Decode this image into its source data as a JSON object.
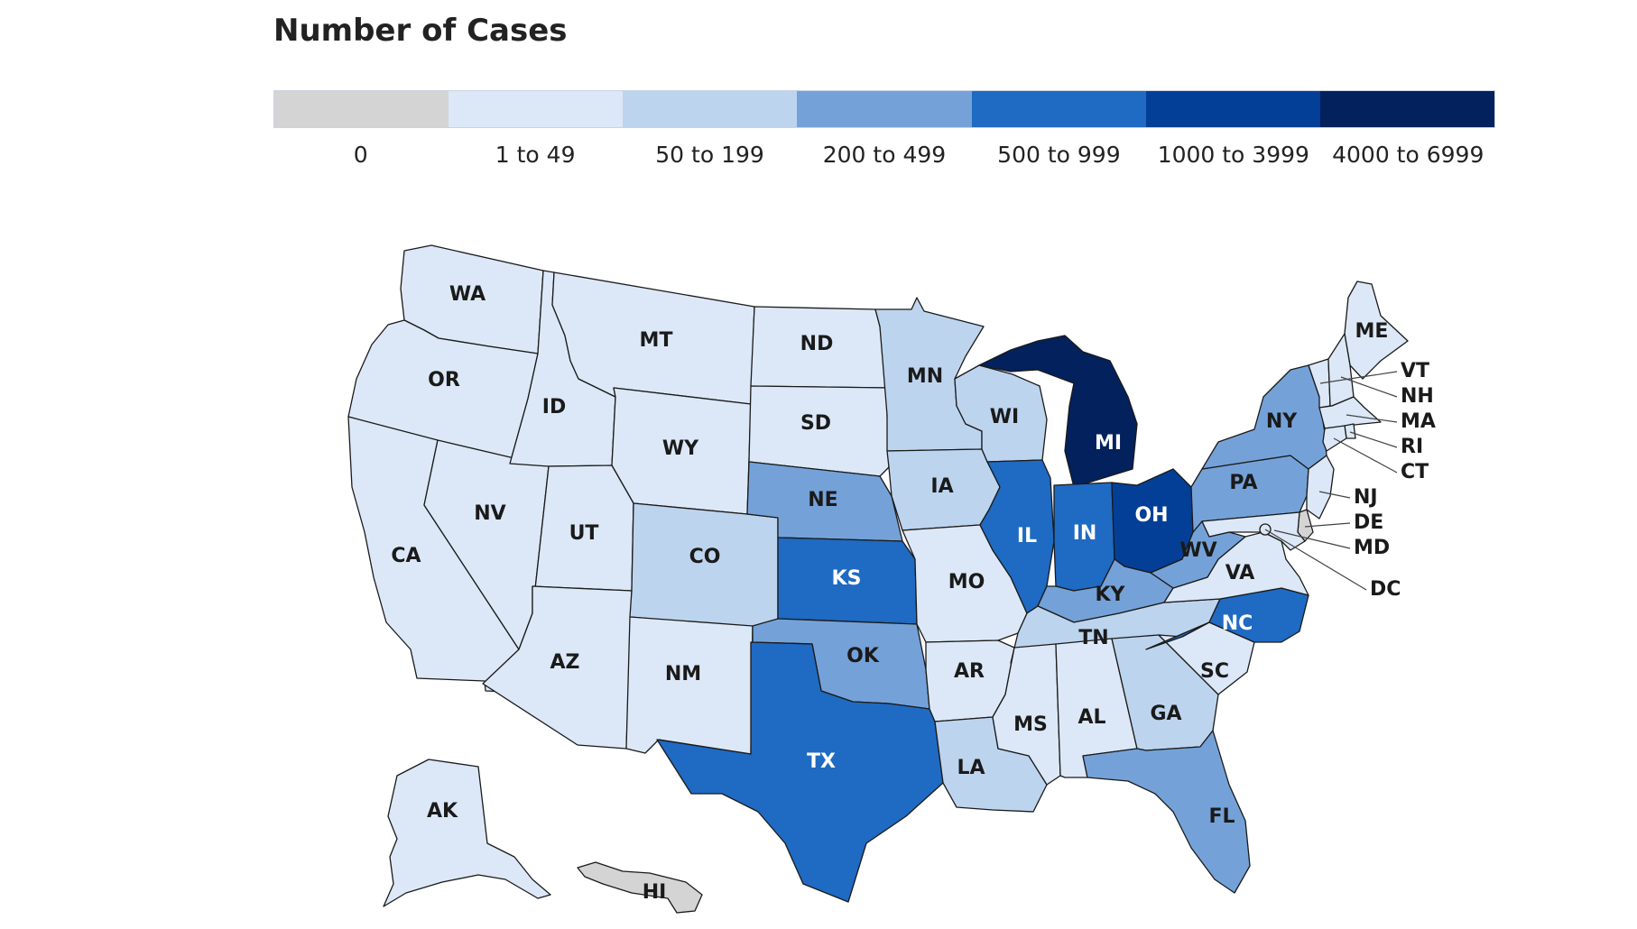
{
  "title": "Number of Cases",
  "legend": [
    {
      "label": "0",
      "color": "#d4d4d4"
    },
    {
      "label": "1 to 49",
      "color": "#dce8f7"
    },
    {
      "label": "50 to 199",
      "color": "#bdd4ee"
    },
    {
      "label": "200 to 499",
      "color": "#74a2d8"
    },
    {
      "label": "500 to 999",
      "color": "#1f6ac2"
    },
    {
      "label": "1000 to 3999",
      "color": "#033f96"
    },
    {
      "label": "4000 to 6999",
      "color": "#03215c"
    }
  ],
  "states": [
    {
      "abbr": "WA",
      "bin": 1
    },
    {
      "abbr": "OR",
      "bin": 1
    },
    {
      "abbr": "CA",
      "bin": 1
    },
    {
      "abbr": "NV",
      "bin": 1
    },
    {
      "abbr": "ID",
      "bin": 1
    },
    {
      "abbr": "MT",
      "bin": 1
    },
    {
      "abbr": "WY",
      "bin": 1
    },
    {
      "abbr": "UT",
      "bin": 1
    },
    {
      "abbr": "AZ",
      "bin": 1
    },
    {
      "abbr": "CO",
      "bin": 2
    },
    {
      "abbr": "NM",
      "bin": 1
    },
    {
      "abbr": "ND",
      "bin": 1
    },
    {
      "abbr": "SD",
      "bin": 1
    },
    {
      "abbr": "NE",
      "bin": 3
    },
    {
      "abbr": "KS",
      "bin": 4
    },
    {
      "abbr": "OK",
      "bin": 3
    },
    {
      "abbr": "TX",
      "bin": 4
    },
    {
      "abbr": "MN",
      "bin": 2
    },
    {
      "abbr": "IA",
      "bin": 2
    },
    {
      "abbr": "MO",
      "bin": 1
    },
    {
      "abbr": "AR",
      "bin": 1
    },
    {
      "abbr": "LA",
      "bin": 2
    },
    {
      "abbr": "WI",
      "bin": 2
    },
    {
      "abbr": "IL",
      "bin": 4
    },
    {
      "abbr": "MI",
      "bin": 6
    },
    {
      "abbr": "IN",
      "bin": 4
    },
    {
      "abbr": "OH",
      "bin": 5
    },
    {
      "abbr": "KY",
      "bin": 3
    },
    {
      "abbr": "TN",
      "bin": 2
    },
    {
      "abbr": "MS",
      "bin": 1
    },
    {
      "abbr": "AL",
      "bin": 1
    },
    {
      "abbr": "GA",
      "bin": 2
    },
    {
      "abbr": "FL",
      "bin": 3
    },
    {
      "abbr": "SC",
      "bin": 1
    },
    {
      "abbr": "NC",
      "bin": 4
    },
    {
      "abbr": "VA",
      "bin": 1
    },
    {
      "abbr": "WV",
      "bin": 3
    },
    {
      "abbr": "PA",
      "bin": 3
    },
    {
      "abbr": "NY",
      "bin": 3
    },
    {
      "abbr": "ME",
      "bin": 1
    },
    {
      "abbr": "VT",
      "bin": 1
    },
    {
      "abbr": "NH",
      "bin": 1
    },
    {
      "abbr": "MA",
      "bin": 1
    },
    {
      "abbr": "RI",
      "bin": 1
    },
    {
      "abbr": "CT",
      "bin": 1
    },
    {
      "abbr": "NJ",
      "bin": 1
    },
    {
      "abbr": "DE",
      "bin": 0
    },
    {
      "abbr": "MD",
      "bin": 1
    },
    {
      "abbr": "DC",
      "bin": 1
    },
    {
      "abbr": "AK",
      "bin": 1
    },
    {
      "abbr": "HI",
      "bin": 0
    }
  ]
}
